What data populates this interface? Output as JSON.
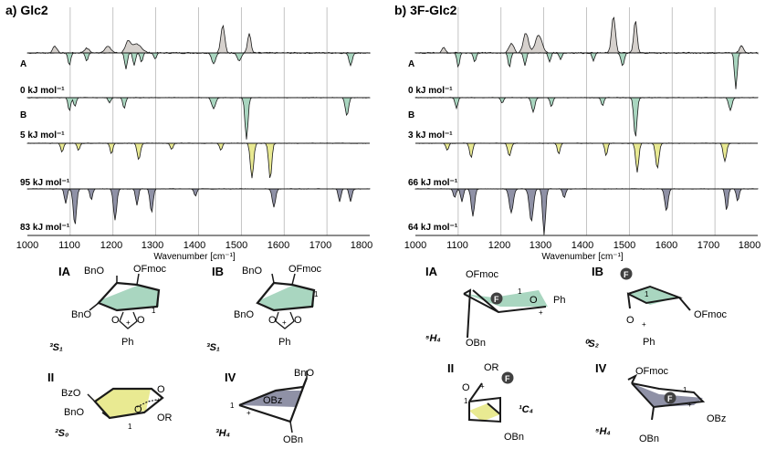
{
  "colors": {
    "positive_fill": "#d6d1cd",
    "IA_fill": "#a9d6c0",
    "IB_fill": "#a9d6c0",
    "II_fill": "#e9ea92",
    "IV_fill": "#8f91a6",
    "line": "#1a1a1a",
    "grid": "#b5b5b5",
    "fluorine_circle": "#404040"
  },
  "panels": [
    {
      "title": "a) Glc2",
      "axis_title": "Wavenumber [cm⁻¹]",
      "ticks": [
        "1000",
        "1100",
        "1200",
        "1300",
        "1400",
        "1500",
        "1600",
        "1700",
        "1800"
      ],
      "traces": [
        {
          "label": "A",
          "energy": "0 kJ mol⁻¹"
        },
        {
          "label": "B",
          "energy": "5 kJ mol⁻¹"
        },
        {
          "label": "",
          "energy": "95 kJ mol⁻¹"
        },
        {
          "label": "",
          "energy": "83 kJ mol⁻¹"
        }
      ]
    },
    {
      "title": "b) 3F-Glc2",
      "axis_title": "Wavenumber [cm⁻¹]",
      "ticks": [
        "1000",
        "1100",
        "1200",
        "1300",
        "1400",
        "1500",
        "1600",
        "1700",
        "1800"
      ],
      "traces": [
        {
          "label": "A",
          "energy": "0 kJ mol⁻¹"
        },
        {
          "label": "B",
          "energy": "3 kJ mol⁻¹"
        },
        {
          "label": "",
          "energy": "66 kJ mol⁻¹"
        },
        {
          "label": "",
          "energy": "64 kJ mol⁻¹"
        }
      ]
    }
  ],
  "structures": {
    "left": [
      {
        "id": "IA",
        "conformation": "³S₁",
        "groups": [
          "BnO",
          "OFmoc",
          "BnO",
          "O",
          "O",
          "1",
          "+",
          "Ph"
        ]
      },
      {
        "id": "IB",
        "conformation": "³S₁",
        "groups": [
          "BnO",
          "OFmoc",
          "BnO",
          "O",
          "O",
          "1",
          "+",
          "Ph"
        ]
      },
      {
        "id": "II",
        "conformation": "²S₀",
        "groups": [
          "BzO",
          "BnO",
          "O",
          "O",
          "+",
          "OR",
          "1"
        ]
      },
      {
        "id": "IV",
        "conformation": "³H₄",
        "groups": [
          "BnO",
          "OBz",
          "1",
          "+",
          "OBn"
        ]
      }
    ],
    "right": [
      {
        "id": "IA",
        "conformation": "⁵H₄",
        "groups": [
          "OFmoc",
          "F",
          "1",
          "O",
          "+",
          "Ph",
          "OBn"
        ]
      },
      {
        "id": "IB",
        "conformation": "⁰S₂",
        "groups": [
          "F",
          "1",
          "OFmoc",
          "O",
          "+",
          "Ph"
        ]
      },
      {
        "id": "II",
        "conformation": "¹C₄",
        "groups": [
          "OR",
          "O",
          "+",
          "F",
          "1",
          "OBn"
        ]
      },
      {
        "id": "IV",
        "conformation": "⁵H₄",
        "groups": [
          "OFmoc",
          "F",
          "1",
          "+",
          "OBz",
          "OBn"
        ]
      }
    ]
  }
}
